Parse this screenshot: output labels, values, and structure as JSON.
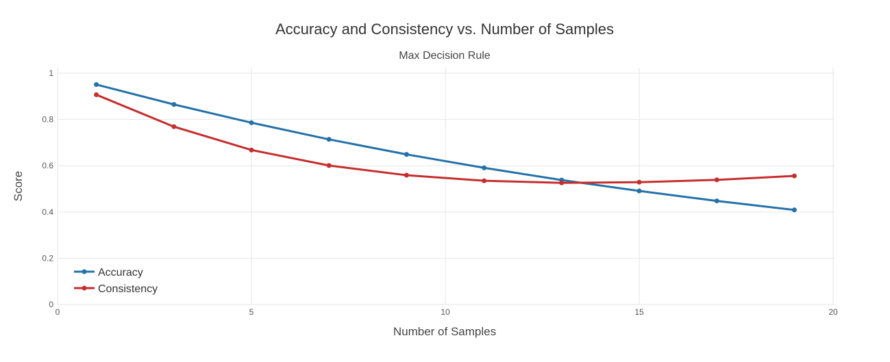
{
  "chart_data": {
    "type": "line",
    "title": "Accuracy and Consistency vs. Number of Samples",
    "subtitle": "Max Decision Rule",
    "xlabel": "Number of Samples",
    "ylabel": "Score",
    "xlim": [
      0,
      20
    ],
    "ylim": [
      0,
      1
    ],
    "x_ticks": [
      {
        "value": 0,
        "label": "0"
      },
      {
        "value": 5,
        "label": "5"
      },
      {
        "value": 10,
        "label": "10"
      },
      {
        "value": 15,
        "label": "15"
      },
      {
        "value": 20,
        "label": "20"
      }
    ],
    "y_ticks": [
      {
        "value": 0,
        "label": "0"
      },
      {
        "value": 0.2,
        "label": "0.2"
      },
      {
        "value": 0.4,
        "label": "0.4"
      },
      {
        "value": 0.6,
        "label": "0.6"
      },
      {
        "value": 0.8,
        "label": "0.8"
      },
      {
        "value": 1,
        "label": "1"
      }
    ],
    "grid": true,
    "legend_position": "bottom-left",
    "x": [
      1,
      3,
      5,
      7,
      9,
      11,
      13,
      15,
      17,
      19
    ],
    "series": [
      {
        "name": "Accuracy",
        "color": "#2471a8",
        "values": [
          0.951,
          0.865,
          0.786,
          0.714,
          0.649,
          0.591,
          0.538,
          0.491,
          0.448,
          0.409
        ]
      },
      {
        "name": "Consistency",
        "color": "#c62d2d",
        "values": [
          0.907,
          0.769,
          0.668,
          0.601,
          0.559,
          0.535,
          0.526,
          0.529,
          0.539,
          0.556
        ]
      }
    ]
  }
}
